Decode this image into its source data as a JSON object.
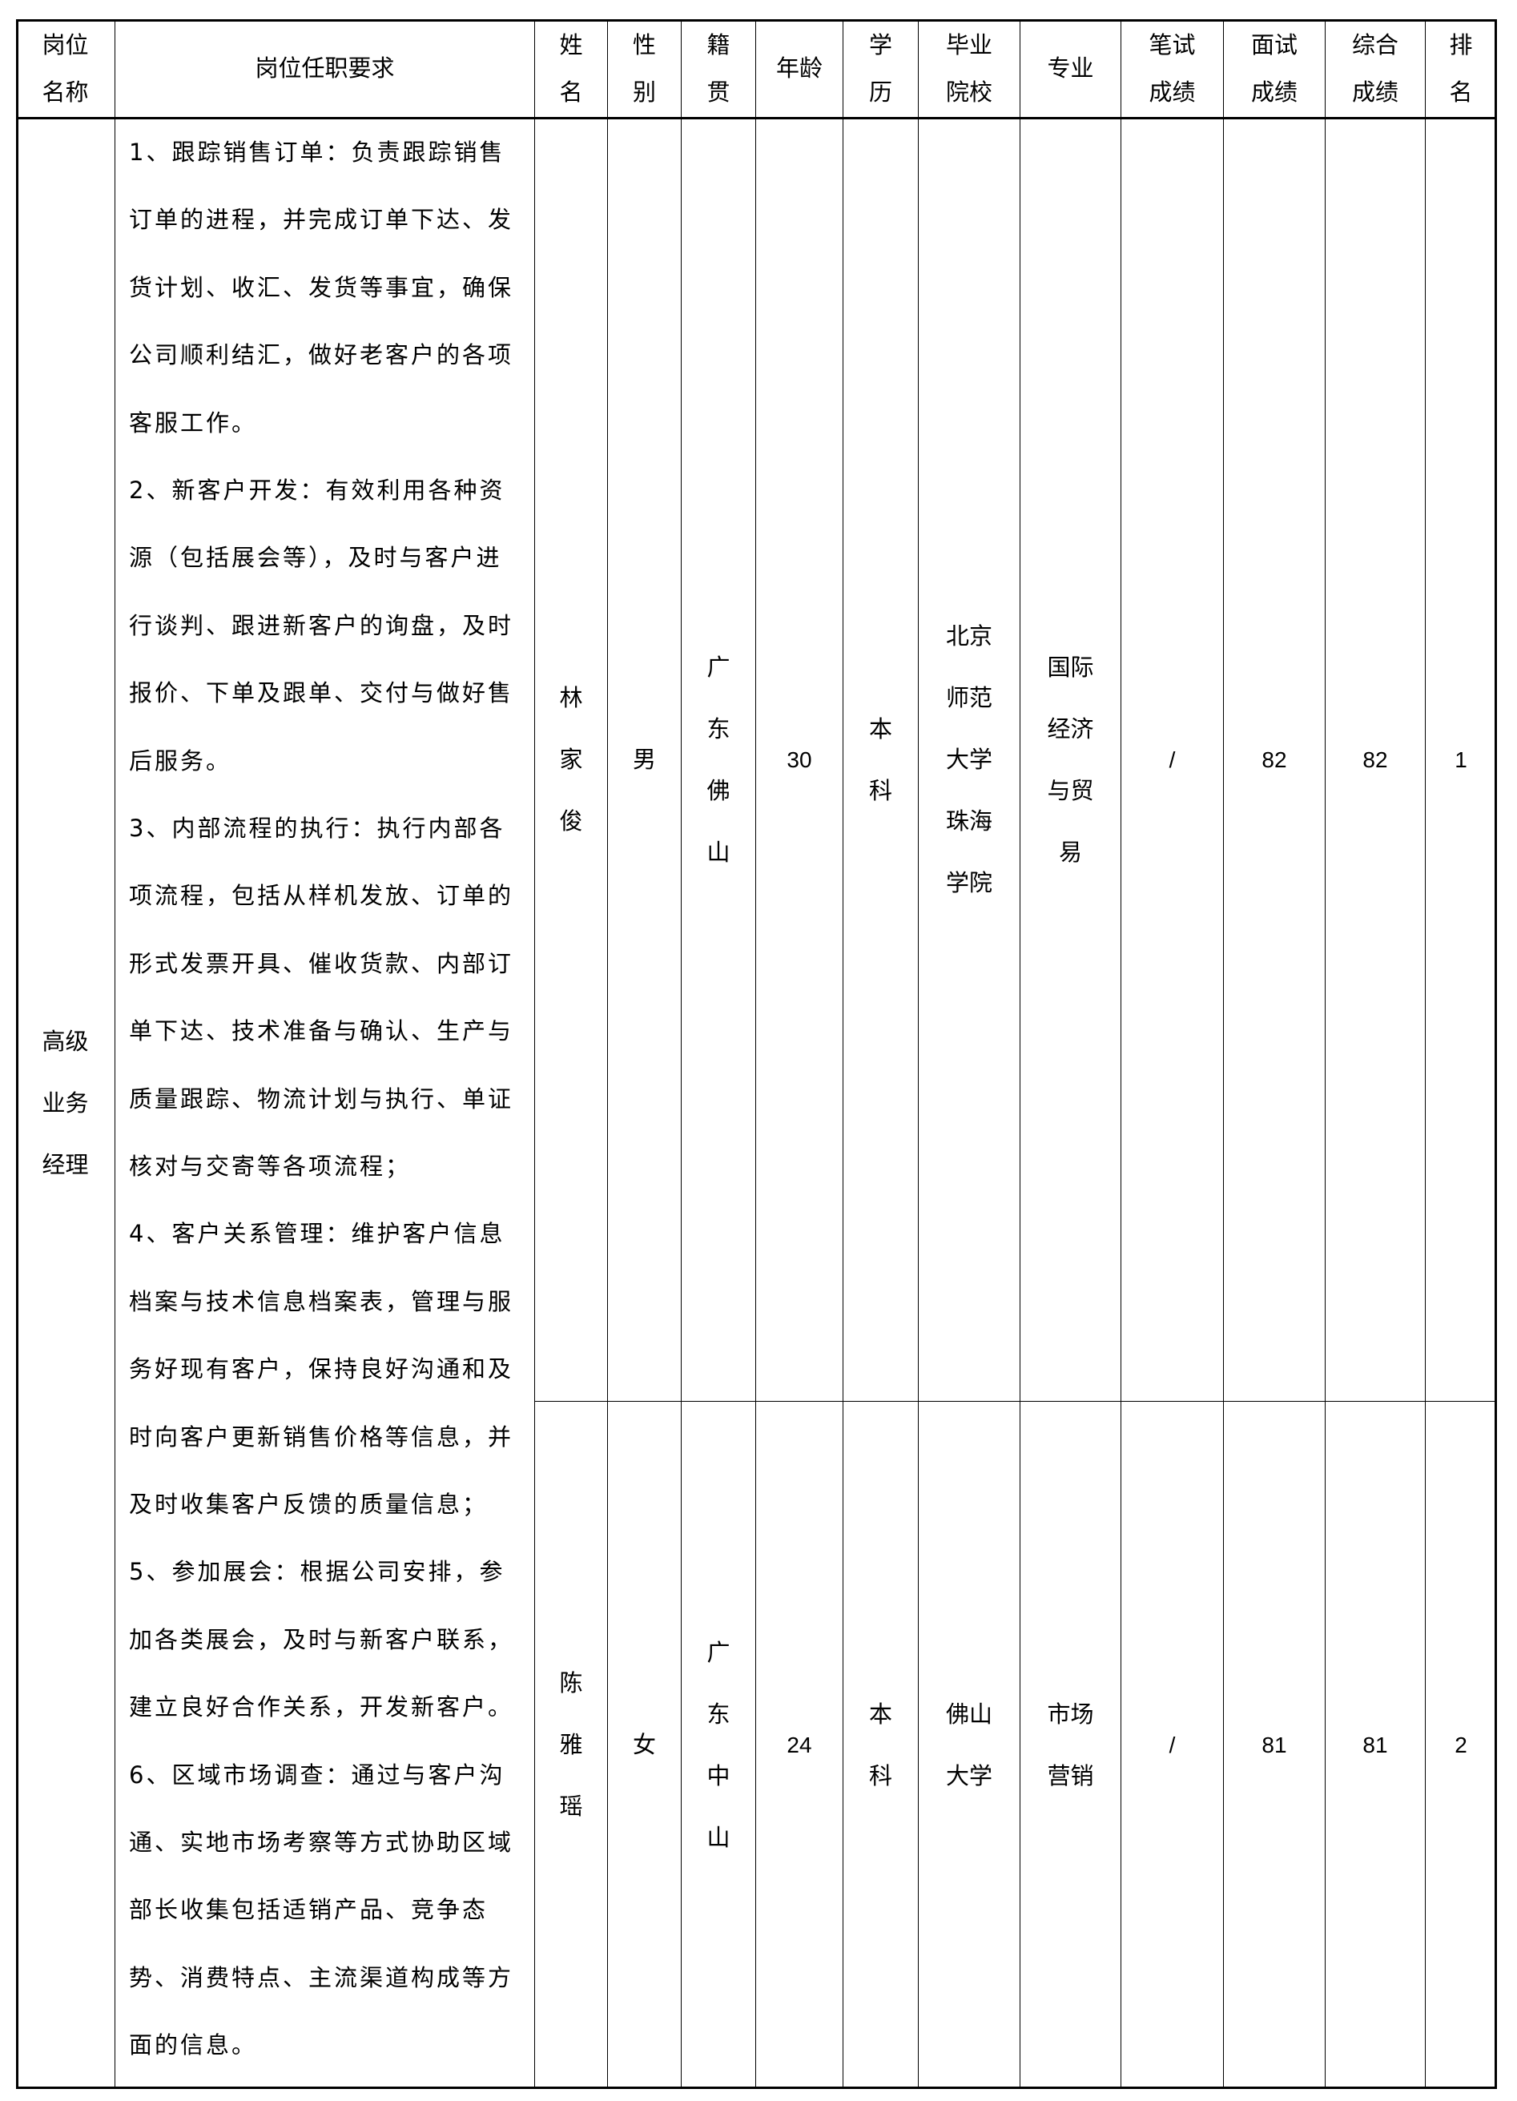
{
  "header": [
    [
      "岗位",
      "名称"
    ],
    [
      "岗位任职要求"
    ],
    [
      "姓",
      "名"
    ],
    [
      "性",
      "别"
    ],
    [
      "籍",
      "贯"
    ],
    [
      "年龄"
    ],
    [
      "学",
      "历"
    ],
    [
      "毕业",
      "院校"
    ],
    [
      "专业"
    ],
    [
      "笔试",
      "成绩"
    ],
    [
      "面试",
      "成绩"
    ],
    [
      "综合",
      "成绩"
    ],
    [
      "排",
      "名"
    ]
  ],
  "position": [
    "高级",
    "业务",
    "经理"
  ],
  "requirements": [
    "1、跟踪销售订单：负责跟踪销售",
    "订单的进程，并完成订单下达、发",
    "货计划、收汇、发货等事宜，确保",
    "公司顺利结汇，做好老客户的各项",
    "客服工作。",
    "2、新客户开发：有效利用各种资",
    "源（包括展会等），及时与客户进",
    "行谈判、跟进新客户的询盘，及时",
    "报价、下单及跟单、交付与做好售",
    "后服务。",
    "3、内部流程的执行：执行内部各",
    "项流程，包括从样机发放、订单的",
    "形式发票开具、催收货款、内部订",
    "单下达、技术准备与确认、生产与",
    "质量跟踪、物流计划与执行、单证",
    "核对与交寄等各项流程；",
    "4、客户关系管理：维护客户信息",
    "档案与技术信息档案表，管理与服",
    "务好现有客户，保持良好沟通和及",
    "时向客户更新销售价格等信息，并",
    "及时收集客户反馈的质量信息；",
    "5、参加展会：根据公司安排，参",
    "加各类展会，及时与新客户联系，",
    "建立良好合作关系，开发新客户。",
    "6、区域市场调查：通过与客户沟",
    "通、实地市场考察等方式协助区域",
    "部长收集包括适销产品、竞争态",
    "势、消费特点、主流渠道构成等方",
    "面的信息。"
  ],
  "rows": [
    {
      "name": [
        "林",
        "家",
        "俊"
      ],
      "gender": [
        "男"
      ],
      "origin": [
        "广",
        "东",
        "佛",
        "山"
      ],
      "age": [
        "30"
      ],
      "education": [
        "本",
        "科"
      ],
      "school": [
        "北京",
        "师范",
        "大学",
        "珠海",
        "学院"
      ],
      "major": [
        "国际",
        "经济",
        "与贸",
        "易"
      ],
      "written": [
        "/"
      ],
      "interview": [
        "82"
      ],
      "total": [
        "82"
      ],
      "rank": [
        "1"
      ]
    },
    {
      "name": [
        "陈",
        "雅",
        "瑶"
      ],
      "gender": [
        "女"
      ],
      "origin": [
        "广",
        "东",
        "中",
        "山"
      ],
      "age": [
        "24"
      ],
      "education": [
        "本",
        "科"
      ],
      "school": [
        "佛山",
        "大学"
      ],
      "major": [
        "市场",
        "营销"
      ],
      "written": [
        "/"
      ],
      "interview": [
        "81"
      ],
      "total": [
        "81"
      ],
      "rank": [
        "2"
      ]
    }
  ]
}
